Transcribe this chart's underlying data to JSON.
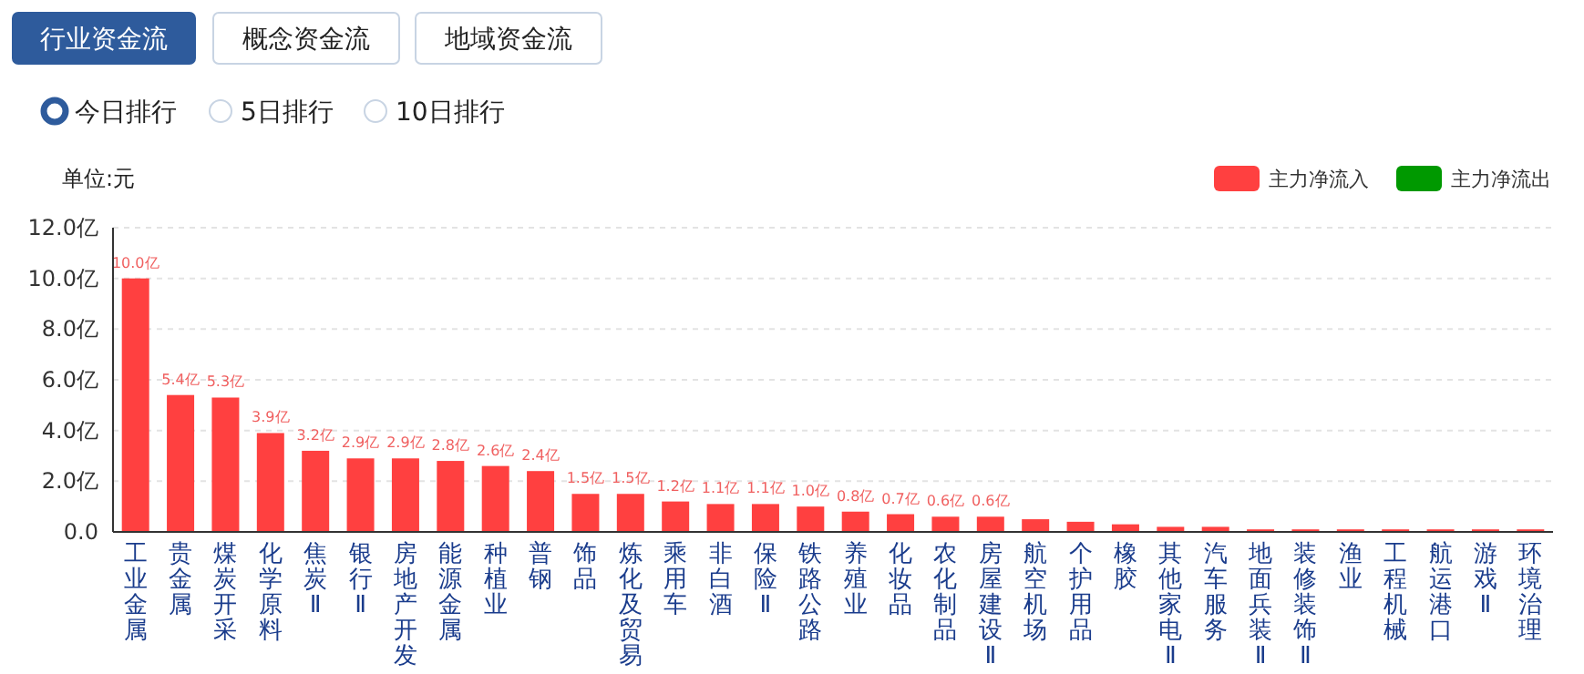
{
  "chart_data": {
    "type": "bar",
    "annotations": [
      "行业资金流",
      "概念资金流",
      "地域资金流",
      "今日排行",
      "5日排行",
      "10日排行"
    ],
    "ylabel": "单位:元",
    "categories": [
      "工业金属",
      "贵金属",
      "煤炭开采",
      "化学原料",
      "焦炭Ⅱ",
      "银行Ⅱ",
      "房地产开发",
      "能源金属",
      "种植业",
      "普钢",
      "饰品",
      "炼化及贸易",
      "乘用车",
      "非白酒",
      "保险Ⅱ",
      "铁路公路",
      "养殖业",
      "化妆品",
      "农化制品",
      "房屋建设Ⅱ",
      "航空机场",
      "个护用品",
      "橡胶",
      "其他家电Ⅱ",
      "汽车服务",
      "地面兵装Ⅱ",
      "装修装饰Ⅱ",
      "渔业",
      "工程机械",
      "航运港口",
      "游戏Ⅱ",
      "环境治理"
    ],
    "series": [
      {
        "name": "主力净流入",
        "color": "#ff4040",
        "values": [
          10.0,
          5.4,
          5.3,
          3.9,
          3.2,
          2.9,
          2.9,
          2.8,
          2.6,
          2.4,
          1.5,
          1.5,
          1.2,
          1.1,
          1.1,
          1.0,
          0.8,
          0.7,
          0.6,
          0.6,
          0.5,
          0.4,
          0.3,
          0.2,
          0.2,
          0.1,
          0.1,
          0.1,
          0.1,
          0.1,
          0.1,
          0.1
        ],
        "value_labels": [
          "10.0亿",
          "5.4亿",
          "5.3亿",
          "3.9亿",
          "3.2亿",
          "2.9亿",
          "2.9亿",
          "2.8亿",
          "2.6亿",
          "2.4亿",
          "1.5亿",
          "1.5亿",
          "1.2亿",
          "1.1亿",
          "1.1亿",
          "1.0亿",
          "0.8亿",
          "0.7亿",
          "0.6亿",
          "0.6亿",
          null,
          null,
          null,
          null,
          null,
          null,
          null,
          null,
          null,
          null,
          null,
          null
        ]
      },
      {
        "name": "主力净流出",
        "color": "#009900",
        "values": [
          null,
          null,
          null,
          null,
          null,
          null,
          null,
          null,
          null,
          null,
          null,
          null,
          null,
          null,
          null,
          null,
          null,
          null,
          null,
          null,
          null,
          null,
          null,
          null,
          null,
          null,
          null,
          null,
          null,
          null,
          null,
          null
        ]
      }
    ],
    "ylim": [
      0,
      12
    ],
    "yticks": [
      {
        "value": 0,
        "label": "0.0"
      },
      {
        "value": 2,
        "label": "2.0亿"
      },
      {
        "value": 4,
        "label": "4.0亿"
      },
      {
        "value": 6,
        "label": "6.0亿"
      },
      {
        "value": 8,
        "label": "8.0亿"
      },
      {
        "value": 10,
        "label": "10.0亿"
      },
      {
        "value": 12,
        "label": "12.0亿"
      }
    ],
    "grid": "y",
    "legend": "top right"
  }
}
